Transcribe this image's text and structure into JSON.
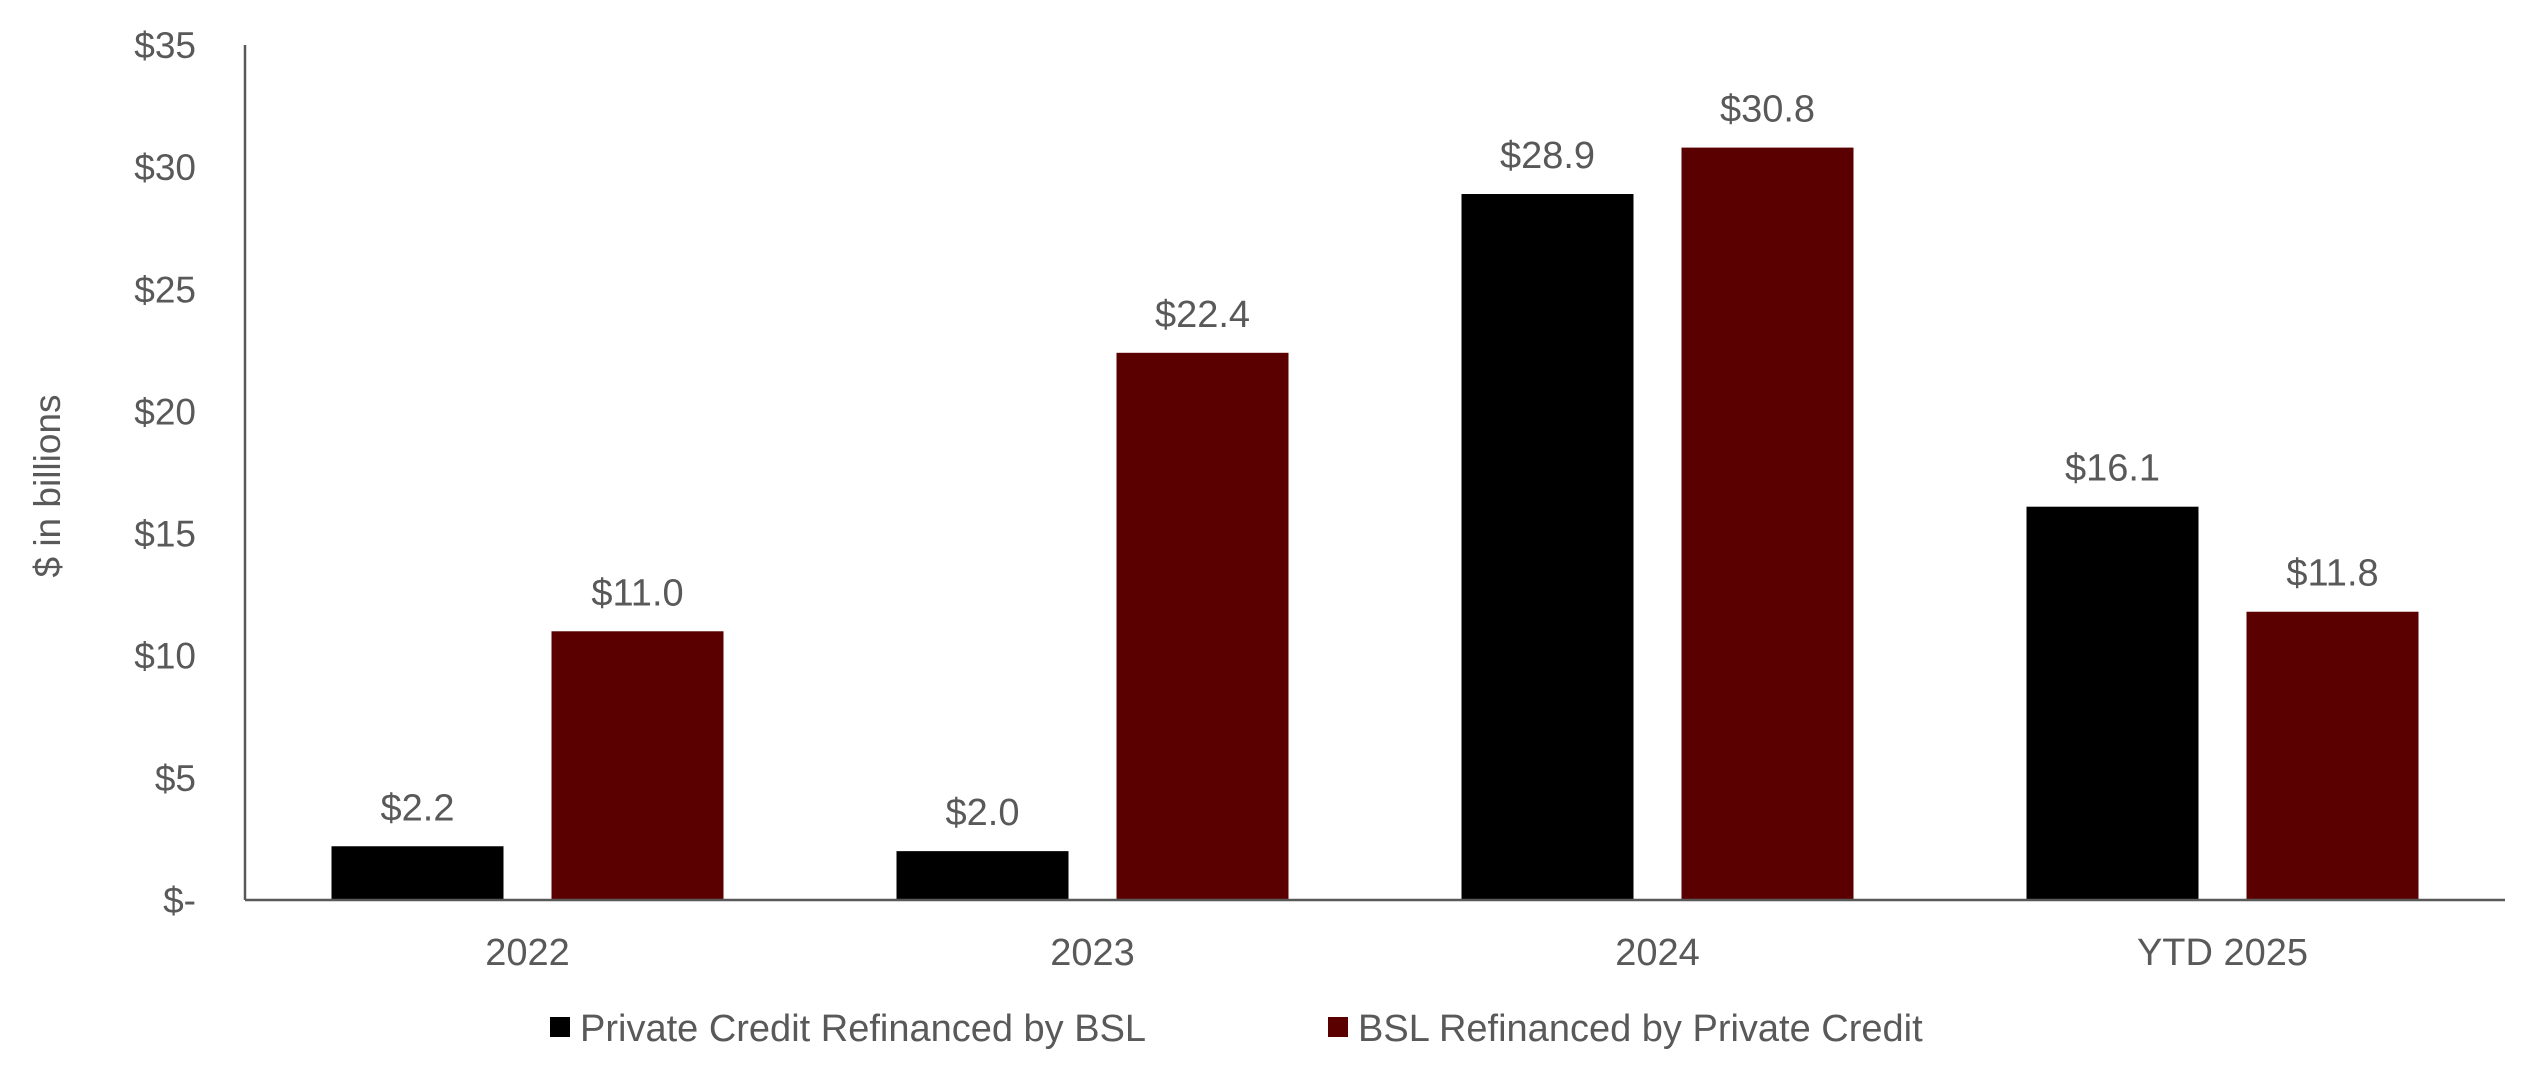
{
  "chart_data": {
    "type": "bar",
    "title": "",
    "xlabel": "",
    "ylabel": "$ in billions",
    "categories": [
      "2022",
      "2023",
      "2024",
      "YTD 2025"
    ],
    "series": [
      {
        "name": "Private Credit Refinanced by BSL",
        "color": "#000000",
        "values": [
          2.2,
          2.0,
          28.9,
          16.1
        ],
        "labels": [
          "$2.2",
          "$2.0",
          "$28.9",
          "$16.1"
        ]
      },
      {
        "name": "BSL Refinanced by Private Credit",
        "color": "#5a0000",
        "values": [
          11.0,
          22.4,
          30.8,
          11.8
        ],
        "labels": [
          "$11.0",
          "$22.4",
          "$30.8",
          "$11.8"
        ]
      }
    ],
    "ylim": [
      0,
      35
    ],
    "yticks": [
      0,
      5,
      10,
      15,
      20,
      25,
      30,
      35
    ],
    "ytick_labels": [
      "$-",
      "$5",
      "$10",
      "$15",
      "$20",
      "$25",
      "$30",
      "$35"
    ],
    "grid": false,
    "legend": "bottom-center"
  }
}
